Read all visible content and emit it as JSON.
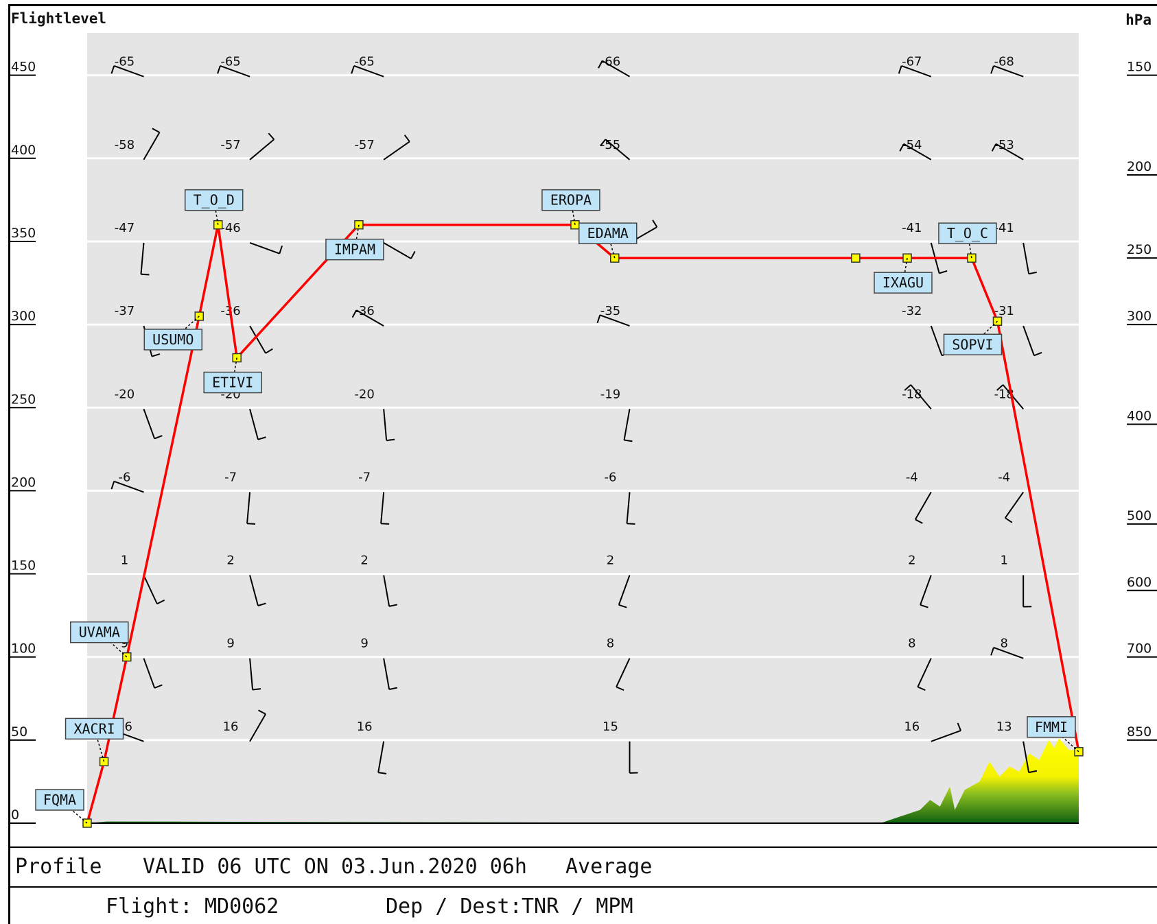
{
  "chart_data": {
    "type": "line",
    "y_axis_left": {
      "label": "Flightlevel",
      "ticks": [
        0,
        50,
        100,
        150,
        200,
        250,
        300,
        350,
        400,
        450
      ],
      "range": [
        0,
        475
      ]
    },
    "y_axis_right": {
      "label": "hPa",
      "ticks": [
        {
          "fl": 450,
          "label": "150"
        },
        {
          "fl": 390,
          "label": "200"
        },
        {
          "fl": 340,
          "label": "250"
        },
        {
          "fl": 300,
          "label": "300"
        },
        {
          "fl": 240,
          "label": "400"
        },
        {
          "fl": 180,
          "label": "500"
        },
        {
          "fl": 140,
          "label": "600"
        },
        {
          "fl": 100,
          "label": "700"
        },
        {
          "fl": 50,
          "label": "850"
        }
      ]
    },
    "grid": true,
    "pressure_levels_fl": [
      450,
      400,
      350,
      300,
      250,
      200,
      150,
      100,
      50
    ],
    "stations": [
      {
        "temps": [
          "-65",
          "-58",
          "-47",
          "-37",
          "-20",
          "-6",
          "1",
          "9",
          "16"
        ]
      },
      {
        "temps": [
          "-65",
          "-57",
          "-46",
          "-36",
          "-20",
          "-7",
          "2",
          "9",
          "16"
        ]
      },
      {
        "temps": [
          "-65",
          "-57",
          "",
          "-36",
          "-20",
          "-7",
          "2",
          "9",
          "16"
        ]
      },
      {
        "temps": [
          "-66",
          "-55",
          "",
          "-35",
          "-19",
          "-6",
          "2",
          "8",
          "15"
        ]
      },
      {
        "temps": [
          "-67",
          "-54",
          "-41",
          "-32",
          "-18",
          "-4",
          "2",
          "8",
          "16"
        ]
      },
      {
        "temps": [
          "-68",
          "-53",
          "-41",
          "-31",
          "-18",
          "-4",
          "1",
          "8",
          "13"
        ]
      }
    ],
    "series": [
      {
        "points": [
          {
            "x": 0,
            "fl": 0,
            "label": "FQMA"
          },
          {
            "x": 0.017,
            "fl": 37,
            "label": "XACRI"
          },
          {
            "x": 0.04,
            "fl": 100,
            "label": "UVAMA"
          },
          {
            "x": 0.113,
            "fl": 305,
            "label": "USUMO"
          },
          {
            "x": 0.132,
            "fl": 360,
            "label": "T_O_D"
          },
          {
            "x": 0.151,
            "fl": 280,
            "label": "ETIVI"
          },
          {
            "x": 0.274,
            "fl": 360,
            "label": "IMPAM"
          },
          {
            "x": 0.492,
            "fl": 360,
            "label": "EROPA"
          },
          {
            "x": 0.532,
            "fl": 340,
            "label": "EDAMA"
          },
          {
            "x": 0.775,
            "fl": 340,
            "label": ""
          },
          {
            "x": 0.827,
            "fl": 340,
            "label": "IXAGU"
          },
          {
            "x": 0.892,
            "fl": 340,
            "label": "T_O_C"
          },
          {
            "x": 0.918,
            "fl": 302,
            "label": "SOPVI"
          },
          {
            "x": 1.0,
            "fl": 43,
            "label": "FMMI"
          }
        ]
      }
    ],
    "terrain": [
      {
        "x": 0,
        "fl": 0
      },
      {
        "x": 0.02,
        "fl": 1
      },
      {
        "x": 0.8,
        "fl": 0
      },
      {
        "x": 0.82,
        "fl": 4
      },
      {
        "x": 0.84,
        "fl": 8
      },
      {
        "x": 0.85,
        "fl": 14
      },
      {
        "x": 0.86,
        "fl": 10
      },
      {
        "x": 0.87,
        "fl": 22
      },
      {
        "x": 0.875,
        "fl": 8
      },
      {
        "x": 0.885,
        "fl": 20
      },
      {
        "x": 0.9,
        "fl": 25
      },
      {
        "x": 0.91,
        "fl": 37
      },
      {
        "x": 0.92,
        "fl": 28
      },
      {
        "x": 0.93,
        "fl": 34
      },
      {
        "x": 0.94,
        "fl": 31
      },
      {
        "x": 0.95,
        "fl": 42
      },
      {
        "x": 0.96,
        "fl": 38
      },
      {
        "x": 0.97,
        "fl": 50
      },
      {
        "x": 0.975,
        "fl": 45
      },
      {
        "x": 0.98,
        "fl": 51
      },
      {
        "x": 0.99,
        "fl": 44
      },
      {
        "x": 1.0,
        "fl": 44
      }
    ]
  },
  "footer": {
    "profile_label": "Profile",
    "valid_text": "VALID 06 UTC ON 03.Jun.2020 06h",
    "mode": "Average",
    "flight_label": "Flight:",
    "flight_id": "MD0062",
    "route_label": "Dep / Dest:",
    "route_value": "TNR / MPM"
  },
  "colors": {
    "plot_bg": "#e5e5e5",
    "route_line": "#ff0000",
    "waypoint_fill": "#ffff00",
    "label_bg": "#bfe4f8",
    "terrain_high": "#ffff00",
    "terrain_low": "#1e6e1e"
  }
}
